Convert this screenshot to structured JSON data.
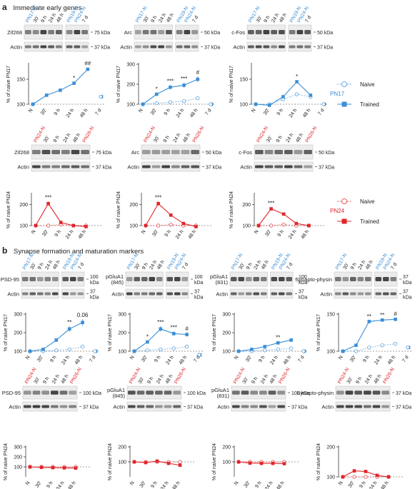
{
  "figure": {
    "sections": [
      {
        "letter": "a",
        "title": "Immediate early genes"
      },
      {
        "letter": "b",
        "title": "Synapse formation and maturation markers"
      }
    ],
    "colors": {
      "pn17": "#3a8fd6",
      "pn24": "#e0262b",
      "dark": "#222222"
    },
    "x_categories": [
      "N",
      "30'",
      "9 h",
      "24 h",
      "48 h",
      "7 d"
    ],
    "legend_pn17": {
      "group": "PN17",
      "naive": "Naive",
      "trained": "Trained"
    },
    "legend_pn24": {
      "group": "PN24",
      "naive": "Naive",
      "trained": "Trained"
    }
  },
  "chart_data": [
    {
      "type": "line",
      "group": "PN17",
      "row": "IEG",
      "marker": "Zif268",
      "kda": [
        "75 kDa"
      ],
      "actin_kda": "37 kDa",
      "ylabel": "% of naive PN17",
      "ylim": [
        100,
        180
      ],
      "yticks": [
        100,
        150
      ],
      "lanes": [
        "PN17-N",
        "30'",
        "9 h",
        "24 h",
        "48 h",
        "PN19-N",
        "PN24-N",
        "7 d"
      ],
      "series": [
        {
          "name": "Trained",
          "values": [
            100,
            118,
            128,
            142,
            170,
            null
          ]
        },
        {
          "name": "Naive",
          "values": [
            100,
            null,
            null,
            null,
            null,
            null
          ]
        }
      ],
      "sev": [
        null,
        null,
        null,
        null,
        null,
        115
      ],
      "annotations": [
        {
          "x": "24 h",
          "label": "*"
        },
        {
          "x": "48 h",
          "label": "##"
        }
      ]
    },
    {
      "type": "line",
      "group": "PN17",
      "row": "IEG",
      "marker": "Arc",
      "kda": [
        "50 kDa"
      ],
      "actin_kda": "37 kDa",
      "ylabel": "% of naive PN17",
      "ylim": [
        100,
        300
      ],
      "yticks": [
        100,
        200,
        300
      ],
      "lanes": [
        "PN17-N",
        "30'",
        "9 h",
        "24 h",
        "48 h",
        "PN19-N",
        "PN24-N",
        "7 d"
      ],
      "series": [
        {
          "name": "Trained",
          "values": [
            100,
            150,
            185,
            195,
            225,
            null
          ]
        },
        {
          "name": "Naive",
          "values": [
            100,
            105,
            110,
            115,
            130,
            null
          ]
        }
      ],
      "sev": [
        null,
        null,
        null,
        null,
        null,
        100
      ],
      "annotations": [
        {
          "x": "30'",
          "label": "*"
        },
        {
          "x": "9 h",
          "label": "***"
        },
        {
          "x": "24 h",
          "label": "***"
        },
        {
          "x": "48 h",
          "label": "#"
        }
      ]
    },
    {
      "type": "line",
      "group": "PN17",
      "row": "IEG",
      "marker": "c-Fos",
      "kda": [
        "50 kDa"
      ],
      "actin_kda": "37 kDa",
      "ylabel": "% of naive PN17",
      "ylim": [
        100,
        180
      ],
      "yticks": [
        100,
        150
      ],
      "lanes": [
        "PN17-N",
        "30'",
        "9 h",
        "24 h",
        "48 h",
        "PN19-N",
        "PN24-N",
        "7 d"
      ],
      "series": [
        {
          "name": "Trained",
          "values": [
            100,
            98,
            115,
            145,
            118,
            null
          ]
        },
        {
          "name": "Naive",
          "values": [
            100,
            100,
            110,
            120,
            115,
            null
          ]
        }
      ],
      "sev": [
        null,
        null,
        null,
        null,
        null,
        100
      ],
      "annotations": [
        {
          "x": "24 h",
          "label": "*"
        }
      ]
    },
    {
      "type": "line",
      "group": "PN24",
      "row": "IEG",
      "marker": "Zif268",
      "kda": [
        "75 kDa"
      ],
      "actin_kda": "37 kDa",
      "ylabel": "% of naive PN24",
      "ylim": [
        100,
        250
      ],
      "yticks": [
        100,
        200
      ],
      "lanes": [
        "PN24-N",
        "30'",
        "9 h",
        "24 h",
        "48 h",
        "PN26-N"
      ],
      "series": [
        {
          "name": "Trained",
          "values": [
            100,
            205,
            115,
            100,
            95
          ]
        },
        {
          "name": "Naive",
          "values": [
            100,
            100,
            105,
            100,
            100
          ]
        }
      ],
      "annotations": [
        {
          "x": "30'",
          "label": "***"
        }
      ]
    },
    {
      "type": "line",
      "group": "PN24",
      "row": "IEG",
      "marker": "Arc",
      "kda": [
        "50 kDa"
      ],
      "actin_kda": "37 kDa",
      "ylabel": "% of naive PN24",
      "ylim": [
        100,
        250
      ],
      "yticks": [
        100,
        200
      ],
      "lanes": [
        "PN24-N",
        "30'",
        "9 h",
        "24 h",
        "48 h",
        "PN26-N"
      ],
      "series": [
        {
          "name": "Trained",
          "values": [
            100,
            205,
            150,
            110,
            95
          ]
        },
        {
          "name": "Naive",
          "values": [
            100,
            100,
            105,
            100,
            100
          ]
        }
      ],
      "annotations": [
        {
          "x": "30'",
          "label": "***"
        }
      ]
    },
    {
      "type": "line",
      "group": "PN24",
      "row": "IEG",
      "marker": "c-Fos",
      "kda": [
        "50 kDa"
      ],
      "actin_kda": "37 kDa",
      "ylabel": "% of naive PN24",
      "ylim": [
        100,
        250
      ],
      "yticks": [
        100,
        200
      ],
      "lanes": [
        "PN24-N",
        "30'",
        "9 h",
        "24 h",
        "48 h",
        "PN26-N"
      ],
      "series": [
        {
          "name": "Trained",
          "values": [
            100,
            180,
            155,
            110,
            100
          ]
        },
        {
          "name": "Naive",
          "values": [
            100,
            100,
            105,
            100,
            100
          ]
        }
      ],
      "annotations": [
        {
          "x": "30'",
          "label": "***"
        }
      ]
    },
    {
      "type": "line",
      "group": "PN17",
      "row": "SYN",
      "marker": "PSD-95",
      "kda": [
        "100",
        "kDa"
      ],
      "actin_kda": "37\nkDa",
      "ylabel": "% of naive PN17",
      "ylim": [
        100,
        300
      ],
      "yticks": [
        100,
        200,
        300
      ],
      "lanes": [
        "PN17-N",
        "30'",
        "9 h",
        "24 h",
        "48 h",
        "PN19-N",
        "PN24-N",
        "7 d"
      ],
      "series": [
        {
          "name": "Trained",
          "values": [
            100,
            110,
            160,
            220,
            255,
            null
          ]
        },
        {
          "name": "Naive",
          "values": [
            100,
            100,
            105,
            110,
            125,
            null
          ]
        }
      ],
      "sev": [
        null,
        null,
        null,
        null,
        null,
        100
      ],
      "annotations": [
        {
          "x": "24 h",
          "label": "**"
        },
        {
          "x": "48 h",
          "label": "0.06"
        }
      ]
    },
    {
      "type": "line",
      "group": "PN17",
      "row": "SYN",
      "marker": "pGluA1 (845)",
      "kda": [
        "100",
        "kDa"
      ],
      "actin_kda": "37\nkDa",
      "ylabel": "% of naive PN17",
      "ylim": [
        100,
        300
      ],
      "yticks": [
        100,
        200,
        300
      ],
      "lanes": [
        "PN17-N",
        "30'",
        "9 h",
        "24 h",
        "48 h",
        "PN19-N",
        "PN24-N",
        "7 d"
      ],
      "series": [
        {
          "name": "Trained",
          "values": [
            100,
            150,
            220,
            195,
            190,
            null
          ]
        },
        {
          "name": "Naive",
          "values": [
            100,
            105,
            110,
            115,
            125,
            null
          ]
        }
      ],
      "sev": [
        null,
        null,
        null,
        null,
        null,
        80
      ],
      "annotations": [
        {
          "x": "30'",
          "label": "*"
        },
        {
          "x": "9 h",
          "label": "***"
        },
        {
          "x": "24 h",
          "label": "***"
        },
        {
          "x": "48 h",
          "label": "#"
        }
      ]
    },
    {
      "type": "line",
      "group": "PN17",
      "row": "SYN",
      "marker": "pGluA1 (831)",
      "kda": [
        "100",
        "kDa"
      ],
      "actin_kda": "37\nkDa",
      "ylabel": "% of naive PN17",
      "ylim": [
        100,
        300
      ],
      "yticks": [
        100,
        200,
        300
      ],
      "lanes": [
        "PN17-N",
        "30'",
        "9 h",
        "24 h",
        "48 h",
        "PN19-N",
        "PN24-N",
        "7 d"
      ],
      "series": [
        {
          "name": "Trained",
          "values": [
            100,
            110,
            125,
            145,
            160,
            null
          ]
        },
        {
          "name": "Naive",
          "values": [
            100,
            100,
            105,
            110,
            115,
            null
          ]
        }
      ],
      "sev": [
        null,
        null,
        null,
        null,
        null,
        100
      ],
      "annotations": [
        {
          "x": "24 h",
          "label": "**"
        }
      ]
    },
    {
      "type": "line",
      "group": "PN17",
      "row": "SYN",
      "marker": "Synapto-physin",
      "kda": [
        "37",
        "kDa"
      ],
      "actin_kda": "37\nkDa",
      "ylabel": "% of naive PN17",
      "ylim": [
        100,
        150
      ],
      "yticks": [
        100,
        150
      ],
      "lanes": [
        "PN17-N",
        "30'",
        "9 h",
        "24 h",
        "48 h",
        "PN19-N",
        "PN24-N",
        "7 d"
      ],
      "series": [
        {
          "name": "Trained",
          "values": [
            100,
            108,
            140,
            142,
            143,
            null
          ]
        },
        {
          "name": "Naive",
          "values": [
            100,
            100,
            105,
            108,
            110,
            null
          ]
        }
      ],
      "sev": [
        null,
        null,
        null,
        null,
        null,
        105
      ],
      "annotations": [
        {
          "x": "9 h",
          "label": "**"
        },
        {
          "x": "24 h",
          "label": "**"
        },
        {
          "x": "48 h",
          "label": "#"
        }
      ]
    },
    {
      "type": "line",
      "group": "PN24",
      "row": "SYN",
      "marker": "PSD-95",
      "kda": [
        "100 kDa"
      ],
      "actin_kda": "37 kDa",
      "ylabel": "% of naive PN24",
      "ylim": [
        0,
        300
      ],
      "yticks": [
        100,
        200,
        300
      ],
      "lanes": [
        "PN24-N",
        "30'",
        "9 h",
        "24 h",
        "48 h",
        "PN26-N"
      ],
      "series": [
        {
          "name": "Trained",
          "values": [
            100,
            95,
            92,
            90,
            88
          ]
        },
        {
          "name": "Naive",
          "values": [
            100,
            100,
            100,
            100,
            100
          ]
        }
      ],
      "annotations": []
    },
    {
      "type": "line",
      "group": "PN24",
      "row": "SYN",
      "marker": "pGluA1 (845)",
      "kda": [
        "100 kDa"
      ],
      "actin_kda": "37 kDa",
      "ylabel": "% of naive PN24",
      "ylim": [
        0,
        200
      ],
      "yticks": [
        100,
        200
      ],
      "lanes": [
        "PN24-N",
        "30'",
        "9 h",
        "24 h",
        "48 h",
        "PN26-N"
      ],
      "series": [
        {
          "name": "Trained",
          "values": [
            100,
            95,
            105,
            90,
            78
          ]
        },
        {
          "name": "Naive",
          "values": [
            100,
            100,
            100,
            100,
            100
          ]
        }
      ],
      "annotations": []
    },
    {
      "type": "line",
      "group": "PN24",
      "row": "SYN",
      "marker": "pGluA1 (831)",
      "kda": [
        "100 kDa"
      ],
      "actin_kda": "37 kDa",
      "ylabel": "% of naive PN24",
      "ylim": [
        0,
        200
      ],
      "yticks": [
        100,
        200
      ],
      "lanes": [
        "PN24-N",
        "30'",
        "9 h",
        "24 h",
        "48 h",
        "PN26-N"
      ],
      "series": [
        {
          "name": "Trained",
          "values": [
            100,
            92,
            90,
            90,
            88
          ]
        },
        {
          "name": "Naive",
          "values": [
            100,
            100,
            100,
            100,
            100
          ]
        }
      ],
      "annotations": []
    },
    {
      "type": "line",
      "group": "PN24",
      "row": "SYN",
      "marker": "Synapto-physin",
      "kda": [
        "37 kDa"
      ],
      "actin_kda": "37 kDa",
      "ylabel": "% of naive PN24",
      "ylim": [
        100,
        200
      ],
      "yticks": [
        100,
        200
      ],
      "lanes": [
        "PN24-N",
        "30'",
        "9 h",
        "24 h",
        "48 h",
        "PN26-N"
      ],
      "series": [
        {
          "name": "Trained",
          "values": [
            100,
            120,
            118,
            105,
            100
          ]
        },
        {
          "name": "Naive",
          "values": [
            100,
            100,
            100,
            100,
            100
          ]
        }
      ],
      "annotations": []
    }
  ]
}
